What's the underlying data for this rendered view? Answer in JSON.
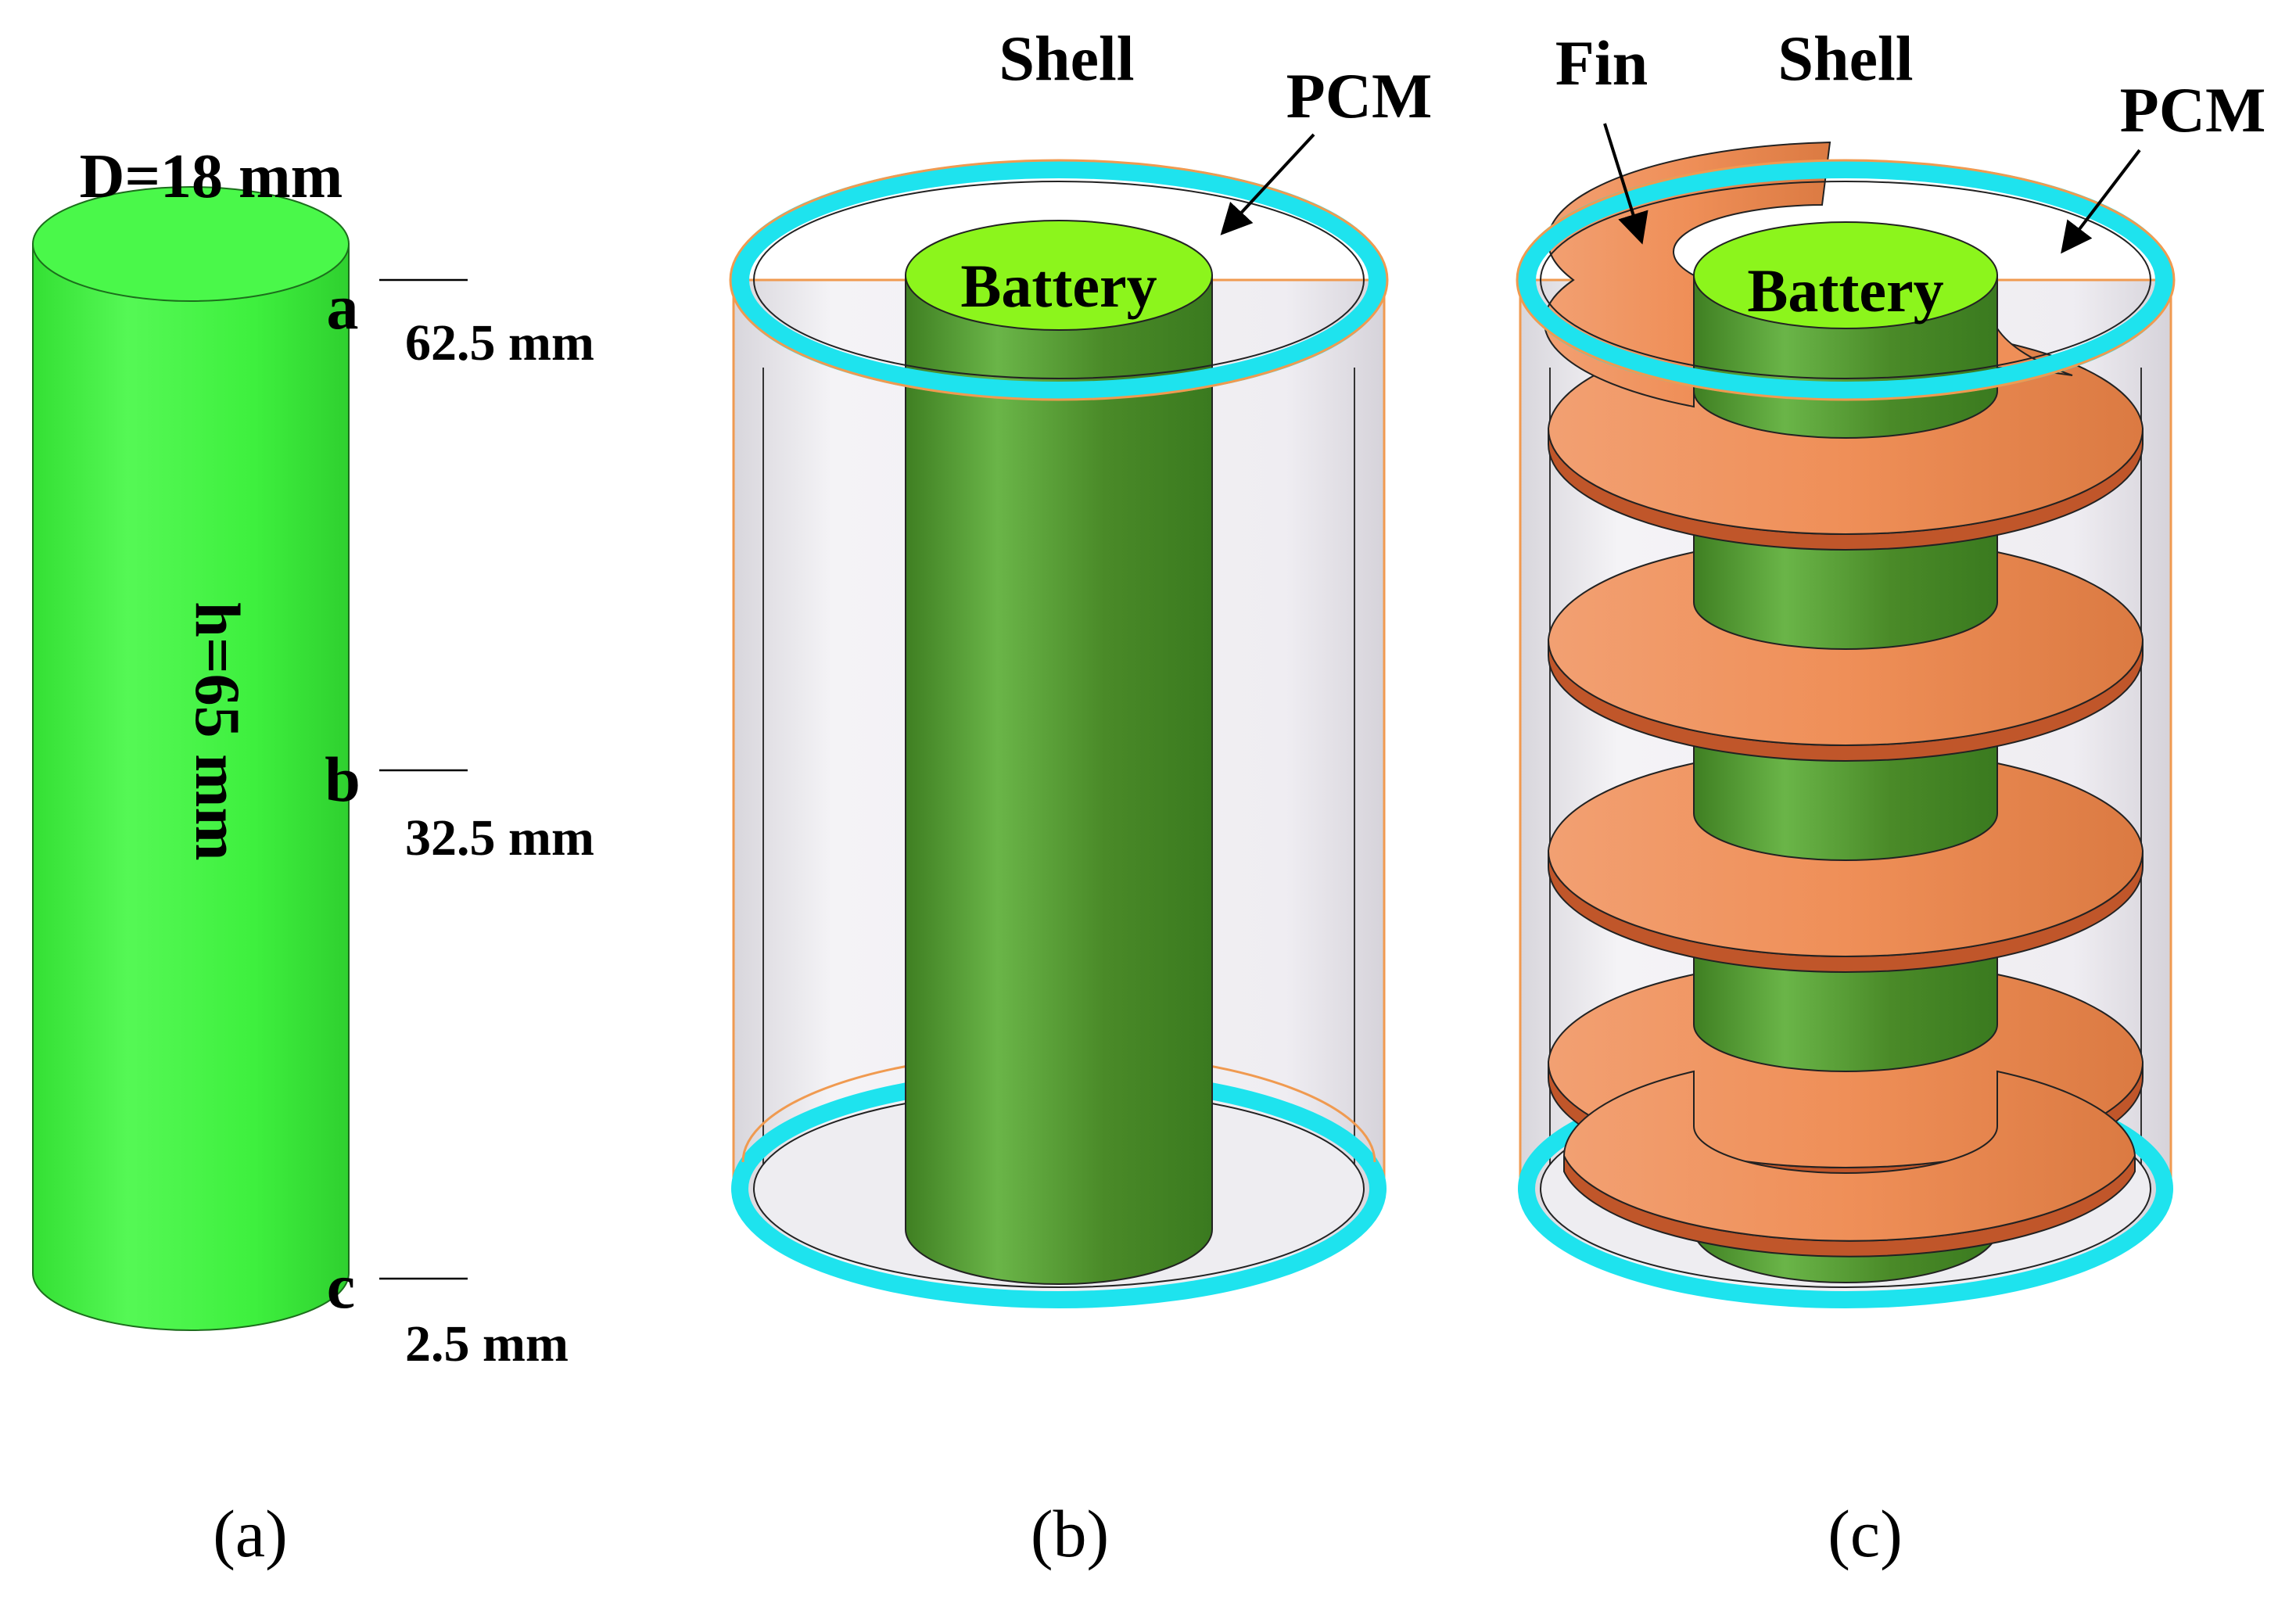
{
  "panel_a": {
    "diameter_label": "D=18 mm",
    "height_label": "h=65 mm",
    "points": [
      {
        "marker": "a",
        "value": "62.5 mm"
      },
      {
        "marker": "b",
        "value": "32.5 mm"
      },
      {
        "marker": "c",
        "value": "2.5 mm"
      }
    ],
    "caption": "(a)"
  },
  "panel_b": {
    "shell_label": "Shell",
    "pcm_label": "PCM",
    "battery_label": "Battery",
    "caption": "(b)"
  },
  "panel_c": {
    "fin_label": "Fin",
    "shell_label": "Shell",
    "pcm_label": "PCM",
    "battery_label": "Battery",
    "caption": "(c)"
  },
  "colors": {
    "battery_bright": "#3ef03e",
    "battery_dark": "#4f8f2a",
    "battery_top": "#8cf51c",
    "shell_ring": "#1ee3ee",
    "shell_outline": "#f09a50",
    "fin": "#f0905a",
    "pcm": "#ebe8ee"
  }
}
